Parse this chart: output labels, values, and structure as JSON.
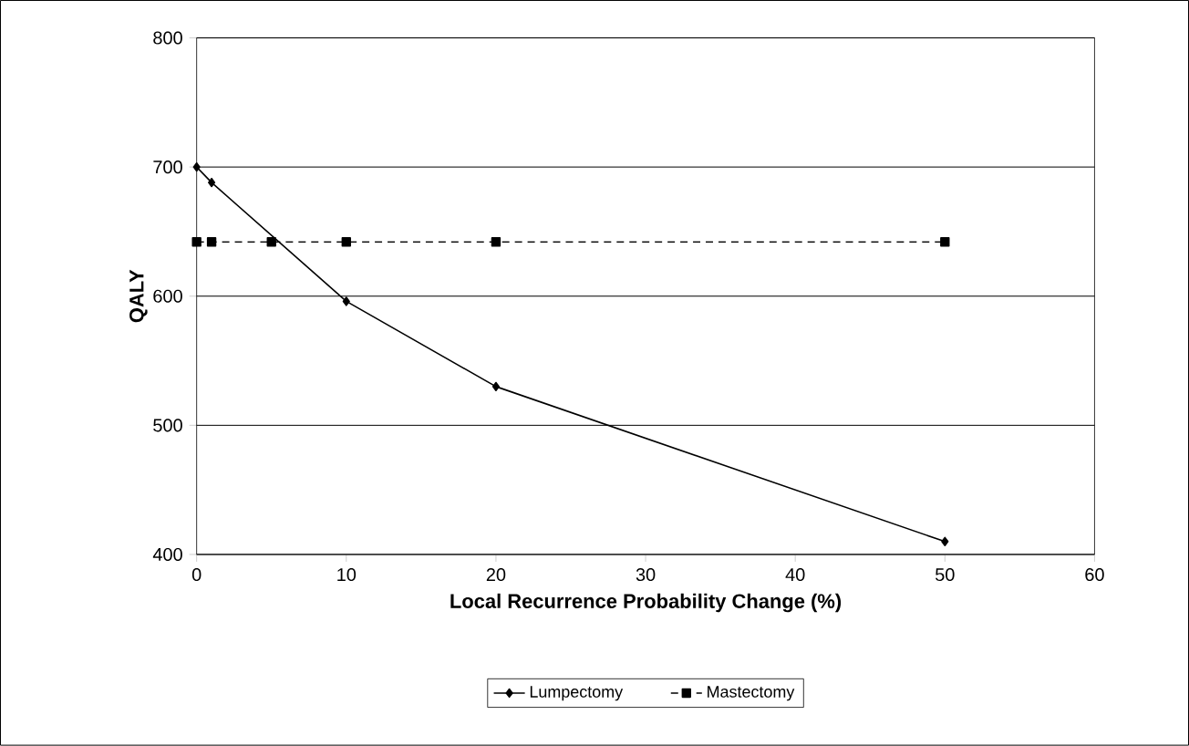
{
  "chart_data": {
    "type": "line",
    "xlabel": "Local Recurrence Probability Change (%)",
    "ylabel": "QALY",
    "series": [
      {
        "name": "Lumpectomy",
        "color": "#000000",
        "x": [
          0,
          1,
          10,
          20,
          50
        ],
        "values": [
          700,
          688,
          596,
          530,
          410
        ],
        "marker": "diamond",
        "line_style": "solid"
      },
      {
        "name": "Mastectomy",
        "color": "#000000",
        "x": [
          0,
          1,
          5,
          10,
          20,
          50
        ],
        "values": [
          642,
          642,
          642,
          642,
          642,
          642
        ],
        "marker": "square",
        "line_style": "dashed"
      }
    ],
    "xlim": [
      0,
      60
    ],
    "xticks": [
      0,
      10,
      20,
      30,
      40,
      50,
      60
    ],
    "ylim": [
      400,
      800
    ],
    "yticks": [
      400,
      500,
      600,
      700,
      800
    ],
    "grid": "y",
    "legend": "bottom"
  }
}
